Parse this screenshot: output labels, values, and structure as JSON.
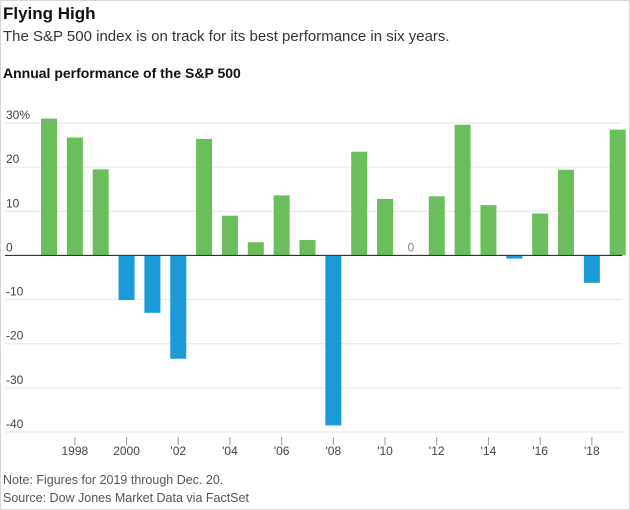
{
  "header": {
    "title": "Flying High",
    "subtitle": "The S&P 500 index is on track for its best performance in six years."
  },
  "footer": {
    "note": "Note: Figures for 2019 through Dec. 20.",
    "source": "Source: Dow Jones Market Data via FactSet"
  },
  "chart_data": {
    "type": "bar",
    "title": "Annual performance of the S&P 500",
    "xlabel": "",
    "ylabel": "",
    "categories": [
      "1997",
      "1998",
      "1999",
      "2000",
      "2001",
      "2002",
      "2003",
      "2004",
      "2005",
      "2006",
      "2007",
      "2008",
      "2009",
      "2010",
      "2011",
      "2012",
      "2013",
      "2014",
      "2015",
      "2016",
      "2017",
      "2018",
      "2019"
    ],
    "values": [
      31.0,
      26.7,
      19.5,
      -10.1,
      -13.0,
      -23.4,
      26.4,
      9.0,
      3.0,
      13.6,
      3.5,
      -38.5,
      23.5,
      12.8,
      0,
      13.4,
      29.6,
      11.4,
      -0.7,
      9.5,
      19.4,
      -6.2,
      28.5
    ],
    "ylim": [
      -40,
      30
    ],
    "y_ticks": [
      30,
      20,
      10,
      0,
      -10,
      -20,
      -30,
      -40
    ],
    "y_tick_labels": [
      "30%",
      "20",
      "10",
      "0",
      "-10",
      "-20",
      "-30",
      "-40"
    ],
    "x_tick_labels": [
      {
        "category": "1998",
        "label": "1998"
      },
      {
        "category": "2000",
        "label": "2000"
      },
      {
        "category": "2002",
        "label": "'02"
      },
      {
        "category": "2004",
        "label": "'04"
      },
      {
        "category": "2006",
        "label": "'06"
      },
      {
        "category": "2008",
        "label": "'08"
      },
      {
        "category": "2010",
        "label": "'10"
      },
      {
        "category": "2012",
        "label": "'12"
      },
      {
        "category": "2014",
        "label": "'14"
      },
      {
        "category": "2016",
        "label": "'16"
      },
      {
        "category": "2018",
        "label": "'18"
      }
    ],
    "annotations": [
      {
        "category": "2011",
        "label": "0"
      }
    ],
    "grid": true,
    "legend": "none",
    "colors": {
      "positive": "#6abf5c",
      "negative": "#1a9ad6",
      "grid": "#e6e6e6",
      "zero": "#333333"
    }
  }
}
